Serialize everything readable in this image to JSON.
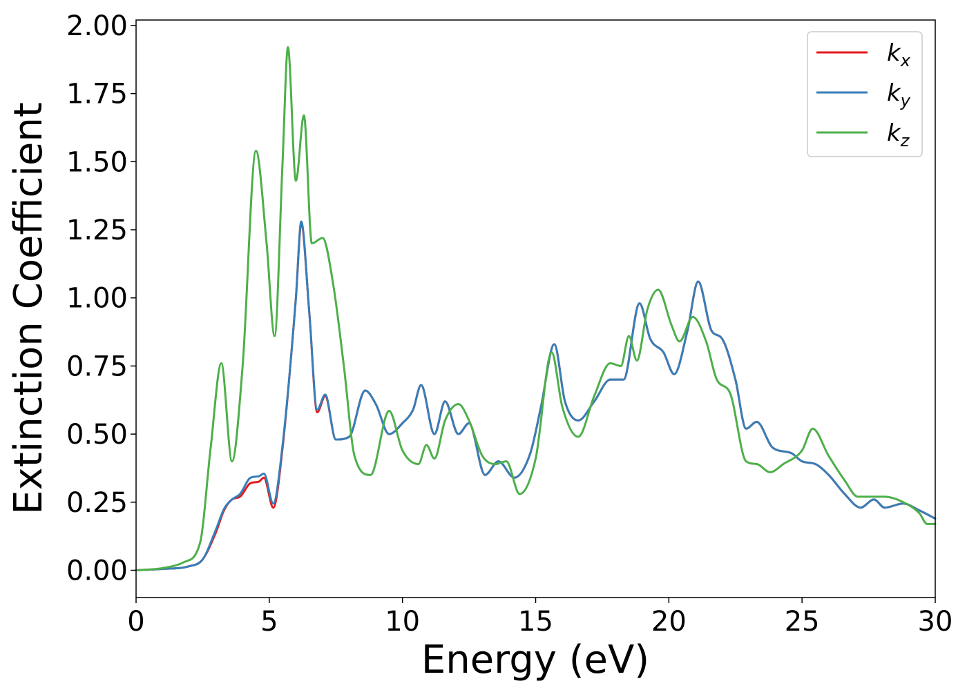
{
  "chart_data": {
    "type": "line",
    "xlabel": "Energy (eV)",
    "ylabel": "Extinction Coefficient",
    "xlim": [
      0,
      30
    ],
    "ylim": [
      -0.1,
      2.02
    ],
    "xticks": [
      0,
      5,
      10,
      15,
      20,
      25,
      30
    ],
    "yticks": [
      0.0,
      0.25,
      0.5,
      0.75,
      1.0,
      1.25,
      1.5,
      1.75,
      2.0
    ],
    "ytick_labels": [
      "0.00",
      "0.25",
      "0.50",
      "0.75",
      "1.00",
      "1.25",
      "1.50",
      "1.75",
      "2.00"
    ],
    "grid": false,
    "legend": {
      "position": "top-right",
      "entries": [
        {
          "base": "k",
          "sub": "x",
          "color": "#e41a1c"
        },
        {
          "base": "k",
          "sub": "y",
          "color": "#377eb8"
        },
        {
          "base": "k",
          "sub": "z",
          "color": "#4daf4a"
        }
      ]
    },
    "series": [
      {
        "name": "kx",
        "color": "#e41a1c",
        "points": [
          [
            0,
            0
          ],
          [
            1,
            0.005
          ],
          [
            2,
            0.015
          ],
          [
            2.5,
            0.04
          ],
          [
            3,
            0.14
          ],
          [
            3.3,
            0.22
          ],
          [
            3.6,
            0.26
          ],
          [
            3.9,
            0.27
          ],
          [
            4.3,
            0.32
          ],
          [
            4.6,
            0.325
          ],
          [
            4.8,
            0.34
          ],
          [
            5.15,
            0.23
          ],
          [
            5.5,
            0.45
          ],
          [
            6,
            1.0
          ],
          [
            6.2,
            1.27
          ],
          [
            6.5,
            0.95
          ],
          [
            6.8,
            0.58
          ],
          [
            7.1,
            0.64
          ],
          [
            7.5,
            0.48
          ],
          [
            8,
            0.49
          ],
          [
            8.6,
            0.66
          ],
          [
            9,
            0.61
          ],
          [
            9.5,
            0.5
          ],
          [
            10,
            0.54
          ],
          [
            10.4,
            0.59
          ],
          [
            10.7,
            0.68
          ],
          [
            11.2,
            0.5
          ],
          [
            11.6,
            0.62
          ],
          [
            12.1,
            0.5
          ],
          [
            12.5,
            0.54
          ],
          [
            13.1,
            0.35
          ],
          [
            13.6,
            0.4
          ],
          [
            14.2,
            0.34
          ],
          [
            14.8,
            0.43
          ],
          [
            15.2,
            0.6
          ],
          [
            15.7,
            0.83
          ],
          [
            16.1,
            0.62
          ],
          [
            16.6,
            0.55
          ],
          [
            17.2,
            0.62
          ],
          [
            17.8,
            0.7
          ],
          [
            18.3,
            0.7
          ],
          [
            18.9,
            0.98
          ],
          [
            19.3,
            0.85
          ],
          [
            19.8,
            0.8
          ],
          [
            20.2,
            0.72
          ],
          [
            20.7,
            0.88
          ],
          [
            21.1,
            1.06
          ],
          [
            21.6,
            0.88
          ],
          [
            22,
            0.85
          ],
          [
            22.5,
            0.7
          ],
          [
            22.9,
            0.52
          ],
          [
            23.3,
            0.545
          ],
          [
            23.9,
            0.45
          ],
          [
            24.6,
            0.43
          ],
          [
            25,
            0.4
          ],
          [
            25.5,
            0.39
          ],
          [
            26,
            0.35
          ],
          [
            26.6,
            0.28
          ],
          [
            27.2,
            0.23
          ],
          [
            27.7,
            0.26
          ],
          [
            28.1,
            0.23
          ],
          [
            28.8,
            0.245
          ],
          [
            29.4,
            0.22
          ],
          [
            30,
            0.19
          ]
        ]
      },
      {
        "name": "ky",
        "color": "#377eb8",
        "points": [
          [
            0,
            0
          ],
          [
            1,
            0.005
          ],
          [
            2,
            0.015
          ],
          [
            2.5,
            0.04
          ],
          [
            3,
            0.15
          ],
          [
            3.3,
            0.225
          ],
          [
            3.6,
            0.26
          ],
          [
            3.9,
            0.28
          ],
          [
            4.3,
            0.34
          ],
          [
            4.6,
            0.345
          ],
          [
            4.8,
            0.355
          ],
          [
            5.15,
            0.245
          ],
          [
            5.5,
            0.46
          ],
          [
            6,
            1.0
          ],
          [
            6.2,
            1.28
          ],
          [
            6.5,
            0.95
          ],
          [
            6.8,
            0.59
          ],
          [
            7.1,
            0.645
          ],
          [
            7.5,
            0.48
          ],
          [
            8,
            0.49
          ],
          [
            8.6,
            0.66
          ],
          [
            9,
            0.61
          ],
          [
            9.5,
            0.5
          ],
          [
            10,
            0.54
          ],
          [
            10.4,
            0.59
          ],
          [
            10.7,
            0.68
          ],
          [
            11.2,
            0.5
          ],
          [
            11.6,
            0.62
          ],
          [
            12.1,
            0.5
          ],
          [
            12.5,
            0.54
          ],
          [
            13.1,
            0.35
          ],
          [
            13.6,
            0.4
          ],
          [
            14.2,
            0.34
          ],
          [
            14.8,
            0.43
          ],
          [
            15.2,
            0.6
          ],
          [
            15.7,
            0.83
          ],
          [
            16.1,
            0.62
          ],
          [
            16.6,
            0.55
          ],
          [
            17.2,
            0.62
          ],
          [
            17.8,
            0.7
          ],
          [
            18.3,
            0.7
          ],
          [
            18.9,
            0.98
          ],
          [
            19.3,
            0.85
          ],
          [
            19.8,
            0.8
          ],
          [
            20.2,
            0.72
          ],
          [
            20.7,
            0.88
          ],
          [
            21.1,
            1.06
          ],
          [
            21.6,
            0.88
          ],
          [
            22,
            0.85
          ],
          [
            22.5,
            0.7
          ],
          [
            22.9,
            0.52
          ],
          [
            23.3,
            0.545
          ],
          [
            23.9,
            0.45
          ],
          [
            24.6,
            0.43
          ],
          [
            25,
            0.4
          ],
          [
            25.5,
            0.39
          ],
          [
            26,
            0.35
          ],
          [
            26.6,
            0.28
          ],
          [
            27.2,
            0.23
          ],
          [
            27.7,
            0.26
          ],
          [
            28.1,
            0.23
          ],
          [
            28.8,
            0.245
          ],
          [
            29.4,
            0.22
          ],
          [
            30,
            0.19
          ]
        ]
      },
      {
        "name": "kz",
        "color": "#4daf4a",
        "points": [
          [
            0,
            0
          ],
          [
            1,
            0.008
          ],
          [
            1.8,
            0.03
          ],
          [
            2.4,
            0.1
          ],
          [
            2.8,
            0.45
          ],
          [
            3.2,
            0.76
          ],
          [
            3.6,
            0.4
          ],
          [
            4,
            0.75
          ],
          [
            4.5,
            1.54
          ],
          [
            4.9,
            1.2
          ],
          [
            5.2,
            0.86
          ],
          [
            5.5,
            1.5
          ],
          [
            5.7,
            1.92
          ],
          [
            6,
            1.43
          ],
          [
            6.3,
            1.67
          ],
          [
            6.6,
            1.2
          ],
          [
            7,
            1.22
          ],
          [
            7.4,
            1.05
          ],
          [
            7.8,
            0.75
          ],
          [
            8.2,
            0.42
          ],
          [
            8.8,
            0.35
          ],
          [
            9.5,
            0.585
          ],
          [
            10,
            0.44
          ],
          [
            10.6,
            0.39
          ],
          [
            10.9,
            0.46
          ],
          [
            11.2,
            0.41
          ],
          [
            11.6,
            0.55
          ],
          [
            12.1,
            0.61
          ],
          [
            12.5,
            0.55
          ],
          [
            13,
            0.42
          ],
          [
            13.5,
            0.39
          ],
          [
            13.9,
            0.4
          ],
          [
            14.4,
            0.28
          ],
          [
            15,
            0.41
          ],
          [
            15.6,
            0.8
          ],
          [
            16,
            0.6
          ],
          [
            16.6,
            0.49
          ],
          [
            17.2,
            0.64
          ],
          [
            17.8,
            0.76
          ],
          [
            18.2,
            0.75
          ],
          [
            18.5,
            0.86
          ],
          [
            18.8,
            0.77
          ],
          [
            19.2,
            0.96
          ],
          [
            19.6,
            1.03
          ],
          [
            20.1,
            0.9
          ],
          [
            20.4,
            0.84
          ],
          [
            20.9,
            0.93
          ],
          [
            21.4,
            0.84
          ],
          [
            21.8,
            0.7
          ],
          [
            22.3,
            0.65
          ],
          [
            22.9,
            0.4
          ],
          [
            23.3,
            0.39
          ],
          [
            23.8,
            0.36
          ],
          [
            24.3,
            0.39
          ],
          [
            25,
            0.44
          ],
          [
            25.4,
            0.52
          ],
          [
            26,
            0.42
          ],
          [
            26.6,
            0.33
          ],
          [
            27.1,
            0.27
          ],
          [
            27.7,
            0.27
          ],
          [
            28.1,
            0.27
          ],
          [
            28.8,
            0.25
          ],
          [
            29.4,
            0.21
          ],
          [
            29.7,
            0.17
          ],
          [
            30,
            0.17
          ]
        ]
      }
    ]
  }
}
